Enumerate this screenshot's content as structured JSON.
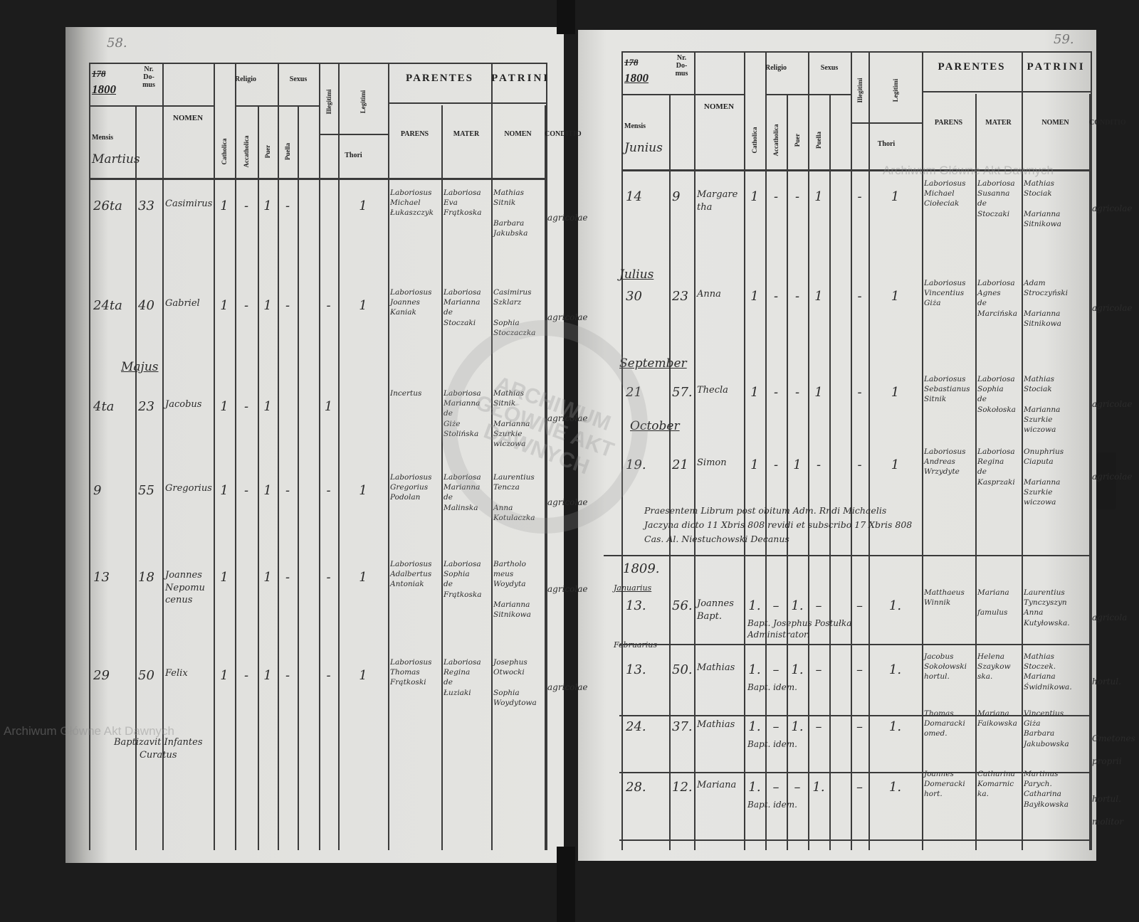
{
  "watermarks": {
    "archive_text": "Archiwum Główne Akt Dawnych",
    "seal_text": "ARCHIWUM GŁÓWNE AKT DAWNYCH"
  },
  "header": {
    "year_struck": "178",
    "year": "1800",
    "nr_domus": "Nr.\nDo-\nmus",
    "mensis": "Mensis",
    "nomen": "NOMEN",
    "religio": "Religio",
    "sexus": "Sexus",
    "catholica": "Catholica",
    "acatholica": "Accatholica",
    "puer": "Puer",
    "puella": "Puella",
    "illegitimi": "Illegitimi",
    "legitimi": "Legitimi",
    "thori": "Thori",
    "parentes": "PARENTES",
    "patrini": "PATRINI",
    "parens": "PARENS",
    "mater": "MATER",
    "patrini_nomen": "NOMEN",
    "conditio": "CONDITIO"
  },
  "left_page": {
    "page_number": "58.",
    "month": "Martius",
    "month_labels": [
      "Majus"
    ],
    "rows": [
      {
        "day": "26ta",
        "nr": "33",
        "nomen": "Casimirus",
        "cath": "1",
        "acc": "-",
        "puer": "1",
        "puella": "-",
        "illeg": "",
        "leg": "1",
        "parens": "Laboriosus\nMichael\nŁukaszczyk",
        "mater": "Laboriosa\nEva\nFrątkoska",
        "patrini": "Mathias\nSitnik\n\nBarbara\nJakubska",
        "conditio": "agricolae"
      },
      {
        "day": "24ta",
        "nr": "40",
        "nomen": "Gabriel",
        "cath": "1",
        "acc": "-",
        "puer": "1",
        "puella": "-",
        "illeg": "-",
        "leg": "1",
        "parens": "Laboriosus\nJoannes\nKaniak",
        "mater": "Laboriosa\nMarianna\nde\nStoczaki",
        "patrini": "Casimirus\nSzklarz\n\nSophia\nStoczaczka",
        "conditio": "agricolae"
      },
      {
        "day": "4ta",
        "nr": "23",
        "nomen": "Jacobus",
        "cath": "1",
        "acc": "-",
        "puer": "1",
        "puella": "",
        "illeg": "1",
        "leg": "",
        "parens": "Incertus",
        "mater": "Laboriosa\nMarianna\nde\nGiże\nStolińska",
        "patrini": "Mathias\nSitnik\n\nMarianna\nSzurkie\nwiczowa",
        "conditio": "agricolae"
      },
      {
        "day": "9",
        "nr": "55",
        "nomen": "Gregorius",
        "cath": "1",
        "acc": "-",
        "puer": "1",
        "puella": "-",
        "illeg": "-",
        "leg": "1",
        "parens": "Laboriosus\nGregorius\nPodolan",
        "mater": "Laboriosa\nMarianna\nde\nMalinska",
        "patrini": "Laurentius\nTencza\n\nAnna\nKotulaczka",
        "conditio": "agricolae"
      },
      {
        "day": "13",
        "nr": "18",
        "nomen": "Joannes\nNepomu\ncenus",
        "cath": "1",
        "acc": "",
        "puer": "1",
        "puella": "-",
        "illeg": "-",
        "leg": "1",
        "parens": "Laboriosus\nAdalbertus\nAntoniak",
        "mater": "Laboriosa\nSophia\nde\nFrątkoska",
        "patrini": "Bartholo\nmeus\nWoydyta\n\nMarianna\nSitnikowa",
        "conditio": "agricolae"
      },
      {
        "day": "29",
        "nr": "50",
        "nomen": "Felix",
        "cath": "1",
        "acc": "-",
        "puer": "1",
        "puella": "-",
        "illeg": "-",
        "leg": "1",
        "parens": "Laboriosus\nThomas\nFrątkoski",
        "mater": "Laboriosa\nRegina\nde\nŁuziaki",
        "patrini": "Josephus\nOtwocki\n\nSophia\nWoydytowa",
        "conditio": "agricolae"
      }
    ],
    "note": "Baptizavit Infantes\nCuratus"
  },
  "right_page": {
    "page_number": "59.",
    "month": "Junius",
    "month_labels": [
      "Julius",
      "September",
      "October"
    ],
    "rows": [
      {
        "day": "14",
        "nr": "9",
        "nomen": "Margare\ntha",
        "cath": "1",
        "acc": "-",
        "puer": "-",
        "puella": "1",
        "illeg": "-",
        "leg": "1",
        "parens": "Laboriosus\nMichael\nCiołeciak",
        "mater": "Laboriosa\nSusanna\nde\nStoczaki",
        "patrini": "Mathias\nStociak\n\nMarianna\nSitnikowa",
        "conditio": "agricolae"
      },
      {
        "day": "30",
        "nr": "23",
        "nomen": "Anna",
        "cath": "1",
        "acc": "-",
        "puer": "-",
        "puella": "1",
        "illeg": "-",
        "leg": "1",
        "parens": "Laboriosus\nVincentius\nGiża",
        "mater": "Laboriosa\nAgnes\nde\nMarcińska",
        "patrini": "Adam\nStroczyński\n\nMarianna\nSitnikowa",
        "conditio": "agricolae"
      },
      {
        "day": "21",
        "nr": "57.",
        "nomen": "Thecla",
        "cath": "1",
        "acc": "-",
        "puer": "-",
        "puella": "1",
        "illeg": "-",
        "leg": "1",
        "parens": "Laboriosus\nSebastianus\nSitnik",
        "mater": "Laboriosa\nSophia\nde\nSokołoska",
        "patrini": "Mathias\nStociak\n\nMarianna\nSzurkie\nwiczowa",
        "conditio": "agricolae"
      },
      {
        "day": "19.",
        "nr": "21",
        "nomen": "Simon",
        "cath": "1",
        "acc": "-",
        "puer": "1",
        "puella": "-",
        "illeg": "-",
        "leg": "1",
        "parens": "Laboriosus\nAndreas\nWrzydyte",
        "mater": "Laboriosa\nRegina\nde\nKasprzaki",
        "patrini": "Onuphrius\nCiaputa\n\nMarianna\nSzurkie\nwiczowa",
        "conditio": "agricolae"
      }
    ],
    "note": "Praesentem Librum post obitum Adm. Rndi Michaelis\nJaczyna dicto 11 Xbris 808 revidi et subscribo 17 Xbris 808\nCas. Al. Niestuchowski Decanus",
    "year_1809": "1809.",
    "months_1809": [
      "Januarius",
      "Februarius"
    ],
    "rows_1809": [
      {
        "day": "13.",
        "nr": "56.",
        "nomen": "Joannes\nBapt.",
        "cath": "1.",
        "acc": "–",
        "puer": "1.",
        "puella": "–",
        "illeg": "–",
        "leg": "1.",
        "parens": "Matthaeus\nWinnik",
        "mater": "Mariana\n\nfamulus",
        "patrini": "Laurentius\nTynczyszyn\nAnna\nKutyłowska.",
        "conditio": "agricola",
        "bapt": "Bapt. Josephus Postułka\nAdministrator."
      },
      {
        "day": "13.",
        "nr": "50.",
        "nomen": "Mathias",
        "cath": "1.",
        "acc": "–",
        "puer": "1.",
        "puella": "–",
        "illeg": "–",
        "leg": "1.",
        "parens": "Jacobus\nSokołowski\nhortul.",
        "mater": "Helena\nSzaykow\nska.",
        "patrini": "Mathias\nStoczek.\nMariana\nŚwidnikowa.",
        "conditio": "hortul.",
        "bapt": "Bapt. idem."
      },
      {
        "day": "24.",
        "nr": "37.",
        "nomen": "Mathias",
        "cath": "1.",
        "acc": "–",
        "puer": "1.",
        "puella": "–",
        "illeg": "–",
        "leg": "1.",
        "parens": "Thomas\nDomaracki\nomed.",
        "mater": "Mariana\nFaikowska",
        "patrini": "Vincentius\nGiża\nBarbara\nJakubowska",
        "conditio": "Cmetones\n\nproprii",
        "bapt": "Bapt. idem."
      },
      {
        "day": "28.",
        "nr": "12.",
        "nomen": "Mariana",
        "cath": "1.",
        "acc": "–",
        "puer": "–",
        "puella": "1.",
        "illeg": "–",
        "leg": "1.",
        "parens": "Joannes\nDomeracki\nhort.",
        "mater": "Catharina\nKomarnic\nka.",
        "patrini": "Martinus\nParych.\nCatharina\nBayłkowska",
        "conditio": "hortul.\n\nmolitor",
        "bapt": "Bapt. idem."
      }
    ]
  }
}
